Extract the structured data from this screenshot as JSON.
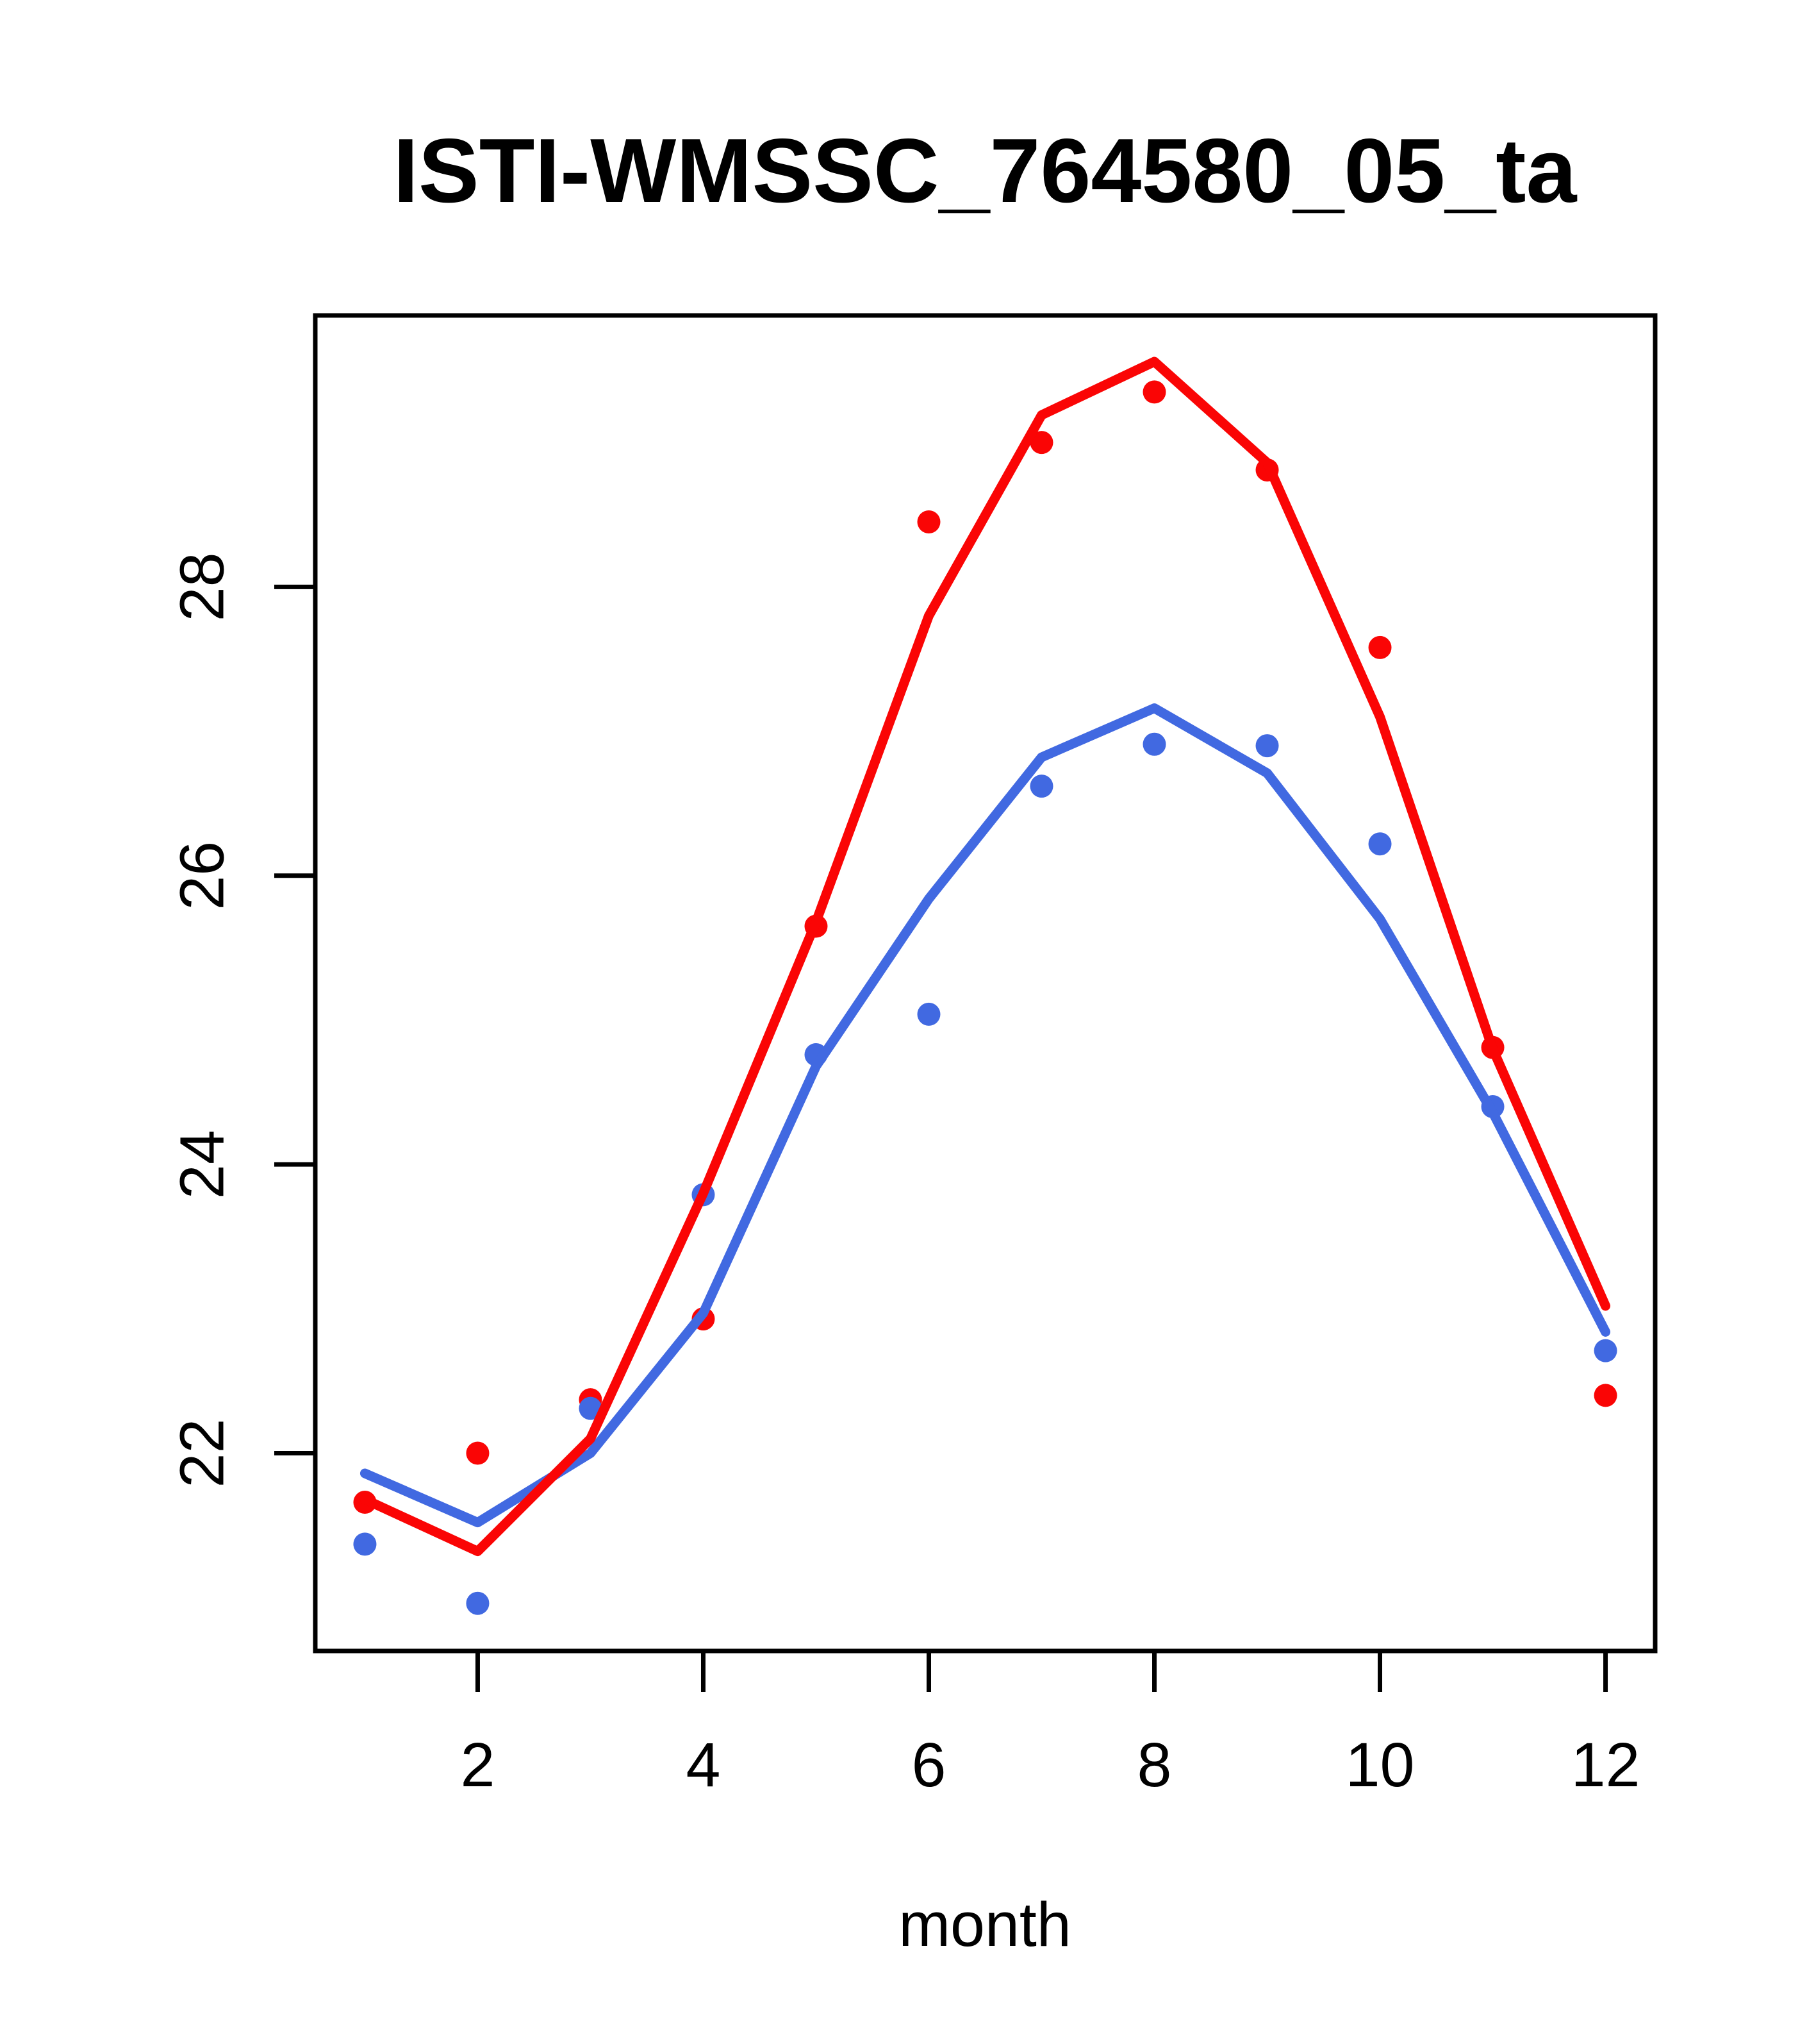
{
  "page": {
    "background": "#ffffff"
  },
  "chart_data": {
    "type": "line",
    "title": "ISTI-WMSSC_764580_05_ta",
    "xlabel": "month",
    "ylabel": "",
    "x": [
      1,
      2,
      3,
      4,
      5,
      6,
      7,
      8,
      9,
      10,
      11,
      12
    ],
    "x_ticks": [
      2,
      4,
      6,
      8,
      10,
      12
    ],
    "y_ticks": [
      22,
      24,
      26,
      28
    ],
    "xlim": [
      0.56,
      12.44
    ],
    "ylim": [
      20.63,
      29.88
    ],
    "grid": false,
    "legend_position": "none",
    "colors": {
      "red_series": "#fa0505",
      "blue_series": "#4169e1",
      "axis": "#000000"
    },
    "series": [
      {
        "name": "red-points",
        "type": "scatter",
        "color": "#fa0505",
        "values": [
          21.66,
          22.0,
          22.37,
          22.93,
          25.65,
          28.45,
          29.0,
          29.35,
          28.81,
          27.58,
          24.81,
          22.4
        ]
      },
      {
        "name": "blue-points",
        "type": "scatter",
        "color": "#4169e1",
        "values": [
          21.37,
          20.96,
          22.31,
          23.79,
          24.76,
          25.04,
          26.62,
          26.91,
          26.9,
          26.22,
          24.4,
          22.71
        ]
      },
      {
        "name": "blue-fitted-line",
        "type": "line",
        "color": "#4169e1",
        "values": [
          21.86,
          21.52,
          22.0,
          22.97,
          24.68,
          25.84,
          26.82,
          27.16,
          26.71,
          25.7,
          24.36,
          22.84
        ]
      },
      {
        "name": "red-fitted-line",
        "type": "line",
        "color": "#fa0505",
        "values": [
          21.68,
          21.32,
          22.1,
          23.8,
          25.68,
          27.8,
          29.19,
          29.56,
          28.86,
          27.1,
          24.8,
          23.02
        ]
      }
    ]
  }
}
